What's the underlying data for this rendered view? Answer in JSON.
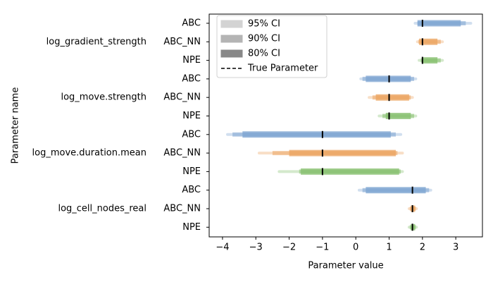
{
  "chart_data": {
    "type": "interval",
    "xlabel": "Parameter value",
    "ylabel": "Parameter name",
    "xlim": [
      -4.4,
      3.8
    ],
    "x_ticks": [
      -4,
      -3,
      -2,
      -1,
      0,
      1,
      2,
      3
    ],
    "legend": {
      "placement": "top-left",
      "entries": [
        "95% CI",
        "90% CI",
        "80% CI",
        "True Parameter"
      ]
    },
    "series_colors": {
      "ABC": "#7ba3d0",
      "ABC_NN": "#eba35e",
      "NPE": "#85bf6e"
    },
    "groups": [
      {
        "parameter": "log_gradient_strength",
        "true_value": 2.0,
        "methods": [
          {
            "method": "ABC",
            "ci95": [
              1.78,
              3.45
            ],
            "ci90": [
              1.85,
              3.3
            ],
            "ci80": [
              1.85,
              3.15
            ]
          },
          {
            "method": "ABC_NN",
            "ci95": [
              1.85,
              2.6
            ],
            "ci90": [
              1.88,
              2.55
            ],
            "ci80": [
              1.9,
              2.45
            ]
          },
          {
            "method": "NPE",
            "ci95": [
              1.9,
              2.6
            ],
            "ci90": [
              1.95,
              2.55
            ],
            "ci80": [
              2.0,
              2.45
            ]
          }
        ]
      },
      {
        "parameter": "log_move.strength",
        "true_value": 1.0,
        "methods": [
          {
            "method": "ABC",
            "ci95": [
              0.15,
              1.8
            ],
            "ci90": [
              0.2,
              1.75
            ],
            "ci80": [
              0.3,
              1.65
            ]
          },
          {
            "method": "ABC_NN",
            "ci95": [
              0.4,
              1.7
            ],
            "ci90": [
              0.5,
              1.65
            ],
            "ci80": [
              0.6,
              1.6
            ]
          },
          {
            "method": "NPE",
            "ci95": [
              0.7,
              1.8
            ],
            "ci90": [
              0.8,
              1.75
            ],
            "ci80": [
              0.9,
              1.65
            ]
          }
        ]
      },
      {
        "parameter": "log_move.duration.mean",
        "true_value": -1.0,
        "methods": [
          {
            "method": "ABC",
            "ci95": [
              -3.85,
              1.35
            ],
            "ci90": [
              -3.7,
              1.2
            ],
            "ci80": [
              -3.4,
              1.05
            ]
          },
          {
            "method": "ABC_NN",
            "ci95": [
              -2.9,
              1.4
            ],
            "ci90": [
              -2.5,
              1.25
            ],
            "ci80": [
              -2.0,
              1.2
            ]
          },
          {
            "method": "NPE",
            "ci95": [
              -2.3,
              1.4
            ],
            "ci90": [
              -1.7,
              1.35
            ],
            "ci80": [
              -1.65,
              1.3
            ]
          }
        ]
      },
      {
        "parameter": "log_cell_nodes_real",
        "true_value": 1.7,
        "methods": [
          {
            "method": "ABC",
            "ci95": [
              0.1,
              2.25
            ],
            "ci90": [
              0.2,
              2.2
            ],
            "ci80": [
              0.3,
              2.1
            ]
          },
          {
            "method": "ABC_NN",
            "ci95": [
              1.6,
              1.82
            ],
            "ci90": [
              1.62,
              1.8
            ],
            "ci80": [
              1.65,
              1.78
            ]
          },
          {
            "method": "NPE",
            "ci95": [
              1.6,
              1.82
            ],
            "ci90": [
              1.62,
              1.8
            ],
            "ci80": [
              1.65,
              1.78
            ]
          }
        ]
      }
    ]
  }
}
